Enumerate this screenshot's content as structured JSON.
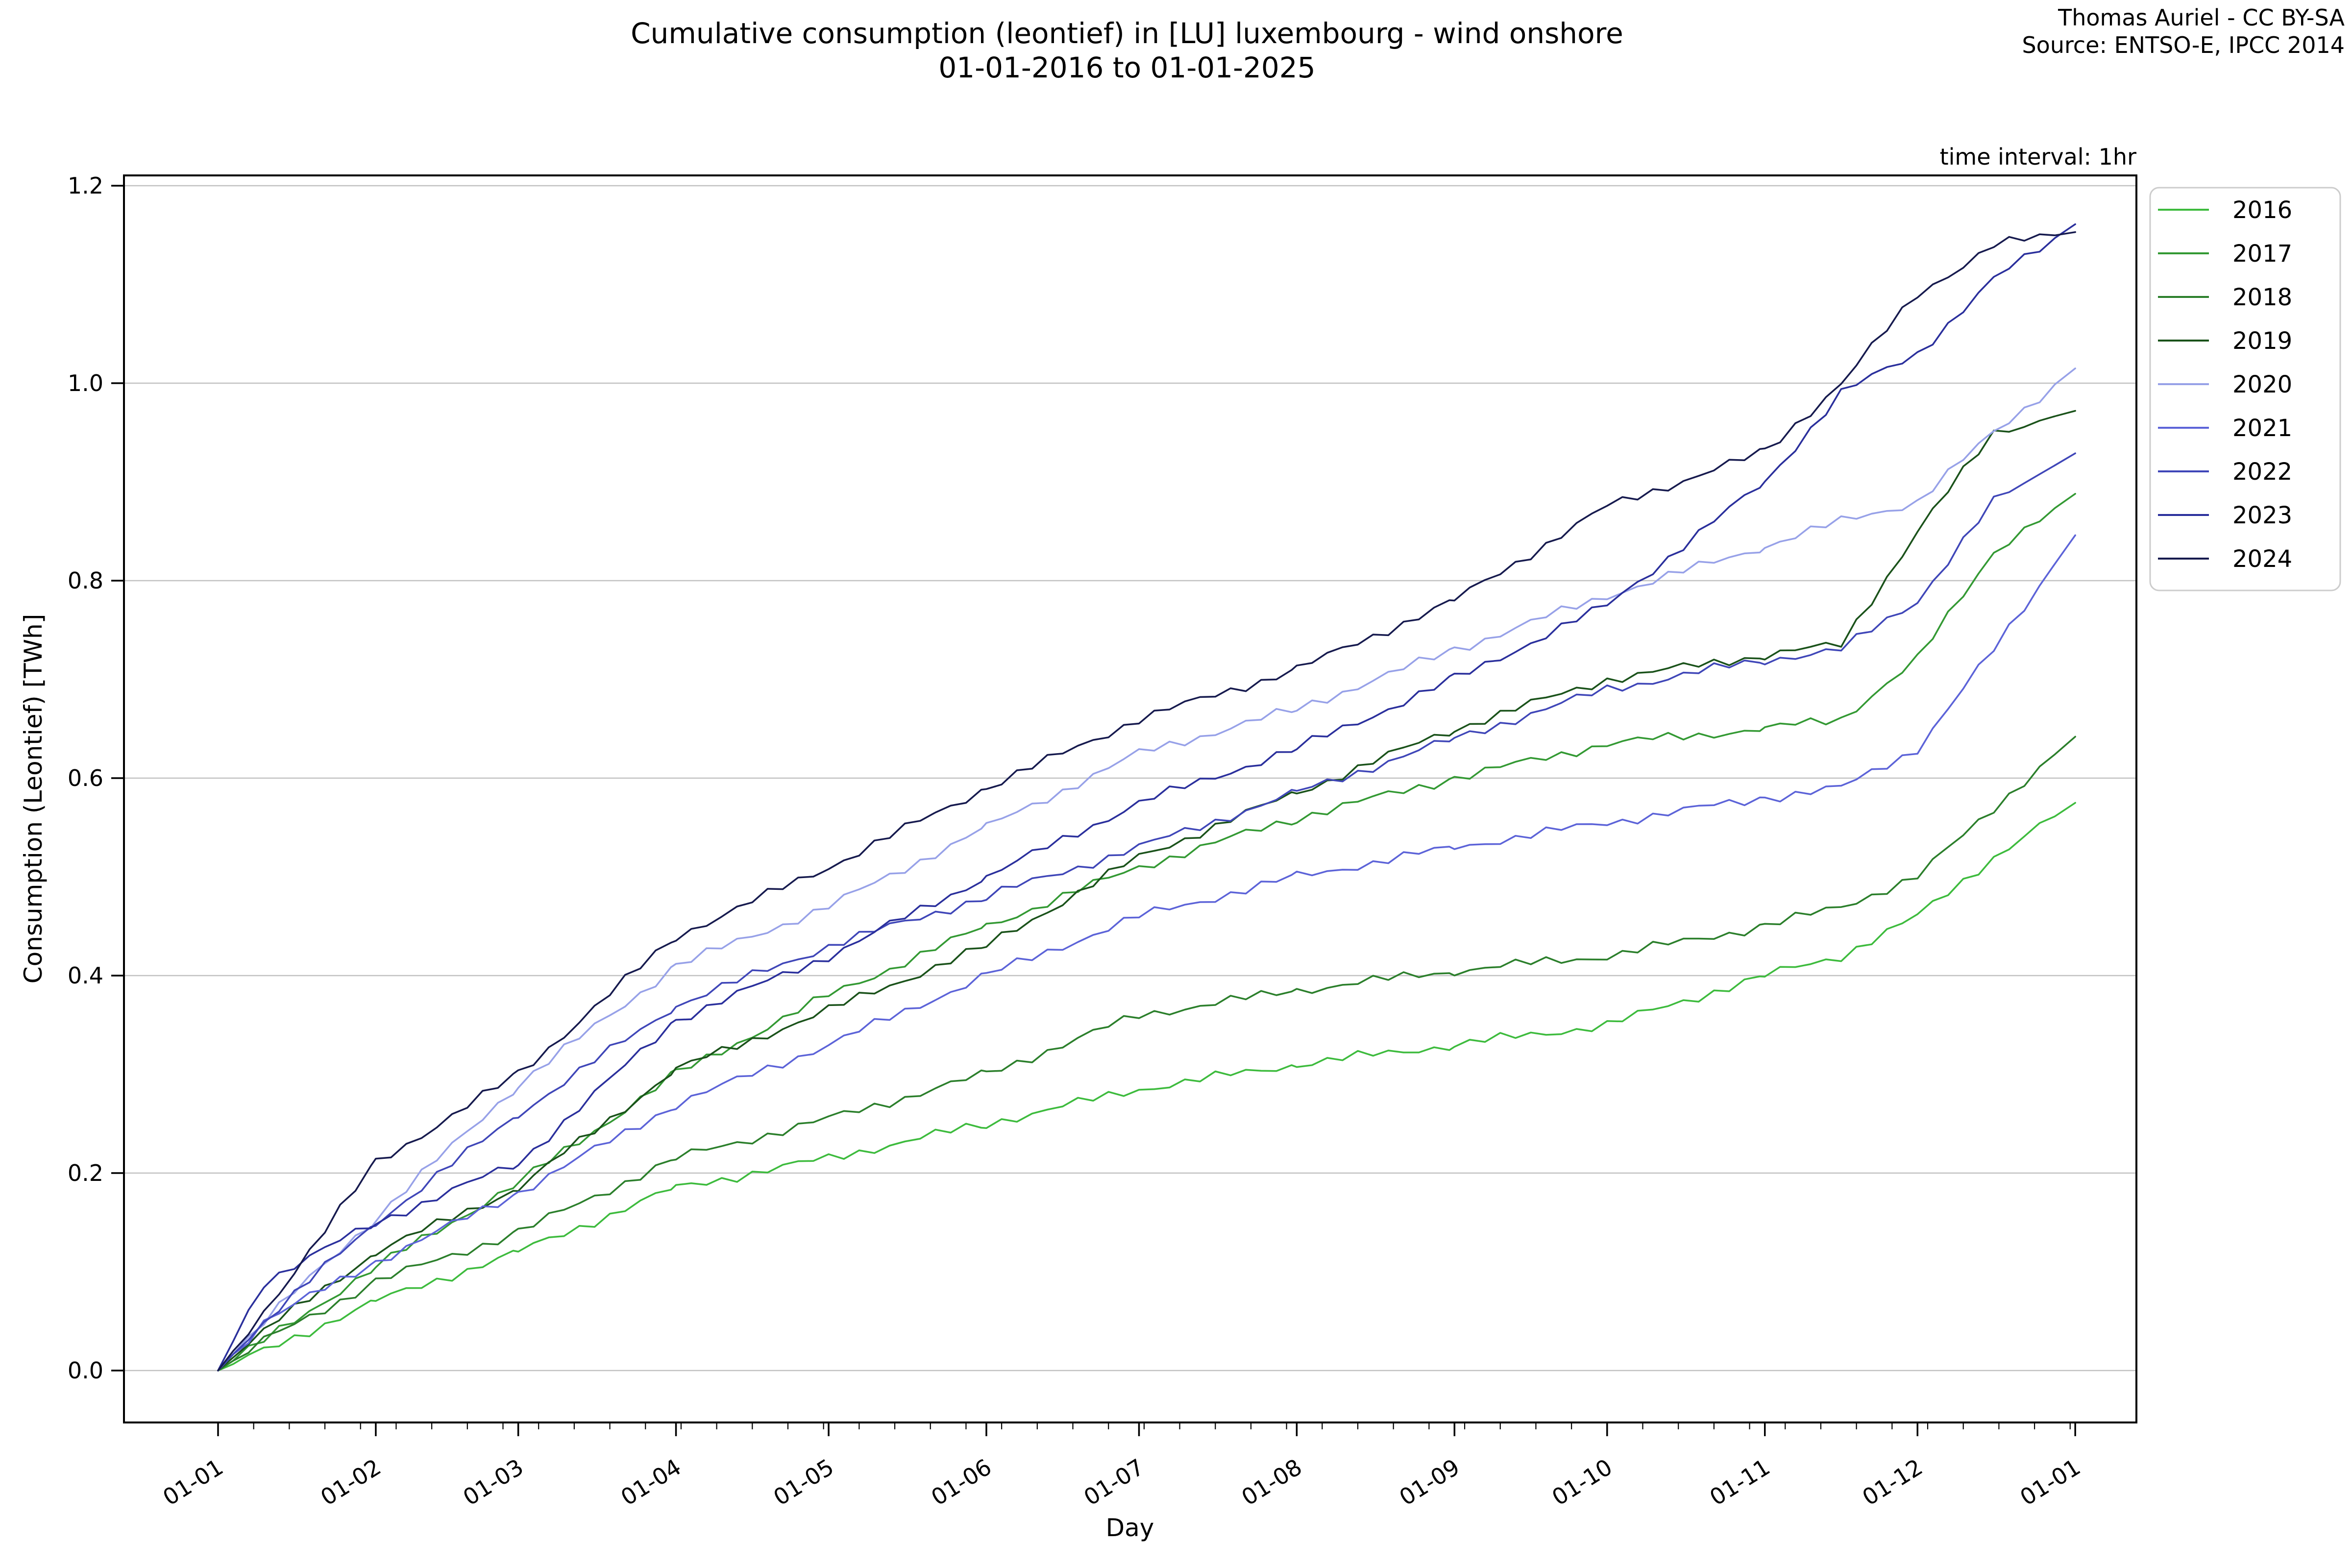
{
  "header": {
    "title_line1": "Cumulative consumption (leontief) in [LU] luxembourg - wind onshore",
    "title_line2": "01-01-2016 to 01-01-2025",
    "credit_line1": "Thomas Auriel - CC BY-SA",
    "credit_line2": "Source: ENTSO-E, IPCC 2014"
  },
  "plot": {
    "time_interval_note": "time interval: 1hr",
    "xlabel": "Day",
    "ylabel": "Consumption (Leontief) [TWh]",
    "grid_color": "#c2c2c2",
    "spine_color": "#000000",
    "background": "#ffffff"
  },
  "legend": {
    "title": "",
    "position": "upper right outside",
    "entries": [
      "2016",
      "2017",
      "2018",
      "2019",
      "2020",
      "2021",
      "2022",
      "2023",
      "2024"
    ]
  },
  "chart_data": {
    "type": "line",
    "title": "Cumulative consumption (leontief) in [LU] luxembourg - wind onshore 01-01-2016 to 01-01-2025",
    "xlabel": "Day",
    "ylabel": "Consumption (Leontief) [TWh]",
    "xlim_days": [
      -17.5,
      378
    ],
    "ylim": [
      -0.053,
      1.205
    ],
    "grid": "horizontal only",
    "legend_position": "right outside",
    "ytick_values": [
      0.0,
      0.2,
      0.4,
      0.6,
      0.8,
      1.0,
      1.2
    ],
    "ytick_labels": [
      "0.0",
      "0.2",
      "0.4",
      "0.6",
      "0.8",
      "1.0",
      "1.2"
    ],
    "xtick_days": [
      1,
      32,
      60,
      91,
      121,
      152,
      182,
      213,
      244,
      274,
      305,
      335,
      366
    ],
    "xtick_labels": [
      "01-01",
      "01-02",
      "01-03",
      "01-04",
      "01-05",
      "01-06",
      "01-07",
      "01-08",
      "01-09",
      "01-10",
      "01-11",
      "01-12",
      "01-01"
    ],
    "x_days": [
      1,
      10,
      32,
      60,
      91,
      121,
      152,
      182,
      213,
      244,
      274,
      305,
      320,
      335,
      350,
      366
    ],
    "units": "TWh",
    "series": [
      {
        "name": "2016",
        "color": "#3dbb3d",
        "values": [
          0,
          0.02,
          0.07,
          0.12,
          0.185,
          0.215,
          0.25,
          0.285,
          0.31,
          0.33,
          0.35,
          0.4,
          0.42,
          0.46,
          0.52,
          0.575
        ]
      },
      {
        "name": "2017",
        "color": "#339933",
        "values": [
          0,
          0.03,
          0.105,
          0.19,
          0.3,
          0.38,
          0.45,
          0.51,
          0.56,
          0.6,
          0.635,
          0.65,
          0.66,
          0.72,
          0.83,
          0.888
        ]
      },
      {
        "name": "2018",
        "color": "#2b7f2b",
        "values": [
          0,
          0.03,
          0.09,
          0.14,
          0.215,
          0.255,
          0.3,
          0.36,
          0.385,
          0.405,
          0.42,
          0.45,
          0.47,
          0.5,
          0.57,
          0.642
        ]
      },
      {
        "name": "2019",
        "color": "#1a521a",
        "values": [
          0,
          0.04,
          0.12,
          0.185,
          0.305,
          0.365,
          0.43,
          0.52,
          0.585,
          0.65,
          0.7,
          0.725,
          0.735,
          0.85,
          0.95,
          0.972
        ]
      },
      {
        "name": "2020",
        "color": "#97a1e8",
        "values": [
          0,
          0.05,
          0.155,
          0.29,
          0.41,
          0.47,
          0.55,
          0.625,
          0.67,
          0.73,
          0.785,
          0.835,
          0.86,
          0.88,
          0.95,
          1.015
        ]
      },
      {
        "name": "2021",
        "color": "#5c63d8",
        "values": [
          0,
          0.05,
          0.11,
          0.18,
          0.27,
          0.33,
          0.4,
          0.46,
          0.5,
          0.53,
          0.555,
          0.58,
          0.59,
          0.63,
          0.73,
          0.846
        ]
      },
      {
        "name": "2022",
        "color": "#3f46b8",
        "values": [
          0,
          0.05,
          0.15,
          0.26,
          0.37,
          0.43,
          0.48,
          0.53,
          0.585,
          0.64,
          0.69,
          0.72,
          0.73,
          0.78,
          0.88,
          0.929
        ]
      },
      {
        "name": "2023",
        "color": "#2a2f9c",
        "values": [
          0,
          0.09,
          0.15,
          0.21,
          0.355,
          0.42,
          0.5,
          0.575,
          0.63,
          0.7,
          0.775,
          0.9,
          0.99,
          1.03,
          1.105,
          1.161
        ]
      },
      {
        "name": "2024",
        "color": "#161a4e",
        "values": [
          0,
          0.06,
          0.21,
          0.3,
          0.44,
          0.51,
          0.59,
          0.66,
          0.71,
          0.78,
          0.875,
          0.93,
          1.0,
          1.09,
          1.14,
          1.153
        ]
      }
    ]
  }
}
